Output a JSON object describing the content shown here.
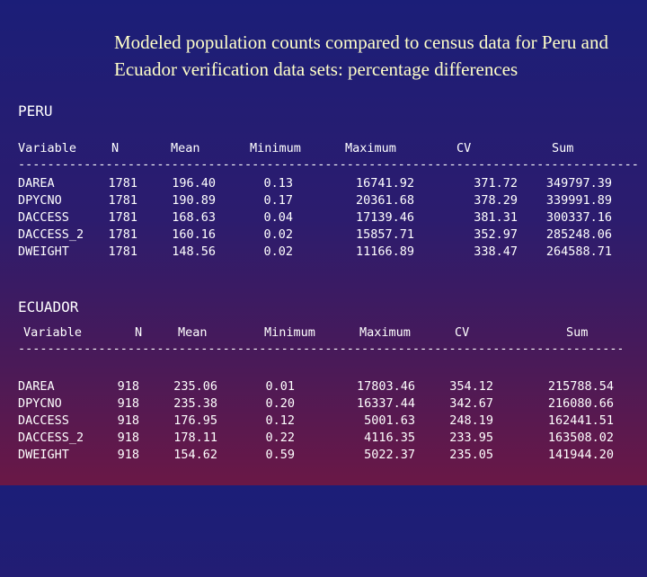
{
  "title": "Modeled population counts compared to census data for Peru and Ecuador verification data sets: percentage differences",
  "peru": {
    "label": "PERU",
    "headers": [
      "Variable",
      "N",
      "Mean",
      "Minimum",
      "Maximum",
      "CV",
      "Sum"
    ],
    "rule": "------------------------------------------------------------------------------------------",
    "rows": [
      [
        "DAREA",
        "1781",
        "196.40",
        "0.13",
        "16741.92",
        "371.72",
        "349797.39"
      ],
      [
        "DPYCNO",
        "1781",
        "190.89",
        "0.17",
        "20361.68",
        "378.29",
        "339991.89"
      ],
      [
        "DACCESS",
        "1781",
        "168.63",
        "0.04",
        "17139.46",
        "381.31",
        "300337.16"
      ],
      [
        "DACCESS_2",
        "1781",
        "160.16",
        "0.02",
        "15857.71",
        "352.97",
        "285248.06"
      ],
      [
        "DWEIGHT",
        "1781",
        "148.56",
        "0.02",
        "11166.89",
        "338.47",
        "264588.71"
      ]
    ]
  },
  "ecuador": {
    "label": "ECUADOR",
    "headers": [
      "Variable",
      "N",
      "Mean",
      "Minimum",
      "Maximum",
      "CV",
      "Sum"
    ],
    "rule": "------------------------------------------------------------------------------------------",
    "rows": [
      [
        "DAREA",
        "918",
        "235.06",
        "0.01",
        "17803.46",
        "354.12",
        "215788.54"
      ],
      [
        "DPYCNO",
        "918",
        "235.38",
        "0.20",
        "16337.44",
        "342.67",
        "216080.66"
      ],
      [
        "DACCESS",
        "918",
        "176.95",
        "0.12",
        "5001.63",
        "248.19",
        "162441.51"
      ],
      [
        "DACCESS_2",
        "918",
        "178.11",
        "0.22",
        "4116.35",
        "233.95",
        "163508.02"
      ],
      [
        "DWEIGHT",
        "918",
        "154.62",
        "0.59",
        "5022.37",
        "235.05",
        "141944.20"
      ]
    ]
  }
}
